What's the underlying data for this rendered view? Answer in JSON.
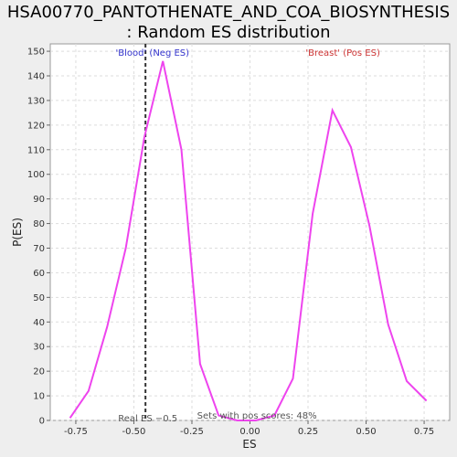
{
  "chart_data": {
    "type": "line",
    "title_line1": "HSA00770_PANTOTHENATE_AND_COA_BIOSYNTHESIS",
    "title_line2": ": Random ES distribution",
    "xlabel": "ES",
    "ylabel": "P(ES)",
    "xlim": [
      -0.86,
      0.86
    ],
    "ylim": [
      0,
      153
    ],
    "x_ticks": [
      -0.75,
      -0.5,
      -0.25,
      0.0,
      0.25,
      0.5,
      0.75
    ],
    "x_tick_labels": [
      "-0.75",
      "-0.50",
      "-0.25",
      "0.00",
      "0.25",
      "0.50",
      "0.75"
    ],
    "y_ticks": [
      0,
      10,
      20,
      30,
      40,
      50,
      60,
      70,
      80,
      90,
      100,
      110,
      120,
      130,
      140,
      150
    ],
    "y_tick_labels": [
      "0",
      "10",
      "20",
      "30",
      "40",
      "50",
      "60",
      "70",
      "80",
      "90",
      "100",
      "110",
      "120",
      "130",
      "140",
      "150"
    ],
    "grid": true,
    "line_color": "#ee44ee",
    "series": [
      {
        "x": [
          -0.775,
          -0.695,
          -0.615,
          -0.535,
          -0.455,
          -0.375,
          -0.295,
          -0.215,
          -0.135,
          -0.055,
          0.025,
          0.105,
          0.185,
          0.27,
          0.355,
          0.435,
          0.515,
          0.595,
          0.675,
          0.76
        ],
        "y": [
          1,
          12,
          38,
          70,
          115,
          146,
          110,
          23,
          2,
          0,
          0,
          2,
          17,
          84,
          126,
          111,
          79,
          39,
          16,
          8
        ]
      }
    ],
    "real_es": -0.45,
    "real_es_label": "Real ES −0.5",
    "neg_label": "'Blood' (Neg ES)",
    "pos_label": "'Breast' (Pos ES)",
    "pos_scores_label": "Sets with pos scores: 48%",
    "neg_color": "#3333cc",
    "pos_color": "#cc3333"
  }
}
